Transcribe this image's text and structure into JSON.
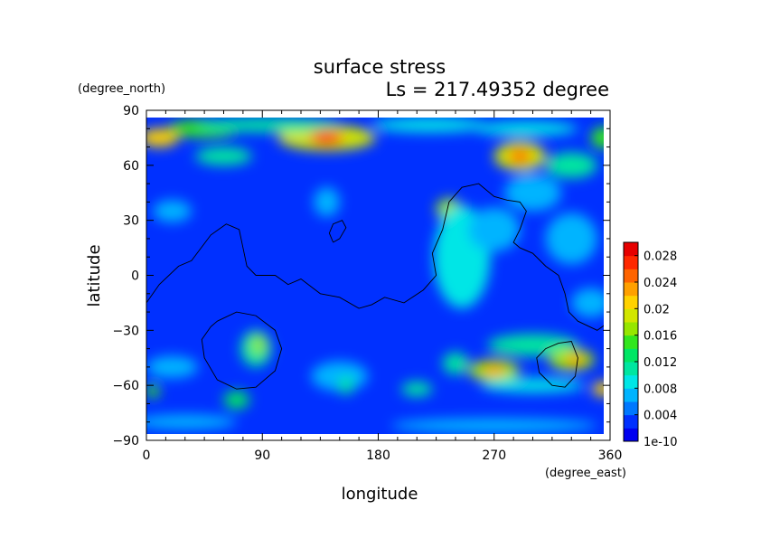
{
  "chart_data": {
    "type": "heatmap",
    "title": "surface stress",
    "subtitle": "Ls = 217.49352 degree",
    "xlabel": "longitude",
    "ylabel": "latitude",
    "x_unit": "(degree_east)",
    "y_unit": "(degree_north)",
    "xlim": [
      0,
      360
    ],
    "ylim": [
      -90,
      90
    ],
    "x_ticks": [
      0,
      90,
      180,
      270,
      360
    ],
    "y_ticks": [
      -90,
      -60,
      -30,
      0,
      30,
      60,
      90
    ],
    "x_tick_labels": [
      "0",
      "90",
      "180",
      "270",
      "360"
    ],
    "y_tick_labels": [
      "−90",
      "−60",
      "−30",
      "0",
      "30",
      "60",
      "90"
    ],
    "grid": false,
    "colorbar": {
      "range": [
        0,
        0.03
      ],
      "tick_values": [
        0,
        0.004,
        0.008,
        0.012,
        0.016,
        0.02,
        0.024,
        0.028
      ],
      "tick_labels": [
        "1e-10",
        "0.004",
        "0.008",
        "0.012",
        "0.016",
        "0.02",
        "0.024",
        "0.028"
      ],
      "colors": [
        "#0000f0",
        "#0030ff",
        "#0078ff",
        "#00b4ff",
        "#00e6e6",
        "#00e6a0",
        "#00e664",
        "#32e61e",
        "#96e600",
        "#d2e600",
        "#ffd200",
        "#ffa000",
        "#ff6400",
        "#ff2800",
        "#e60000"
      ]
    },
    "background_value": 0.0025,
    "features": [
      {
        "lon": 45,
        "lat": 80,
        "rx": 28,
        "ry": 5,
        "value": 0.014
      },
      {
        "lon": 10,
        "lat": 75,
        "rx": 15,
        "ry": 5,
        "value": 0.02
      },
      {
        "lon": 140,
        "lat": 75,
        "rx": 38,
        "ry": 7,
        "value": 0.018
      },
      {
        "lon": 140,
        "lat": 75,
        "rx": 13,
        "ry": 4,
        "value": 0.026
      },
      {
        "lon": 95,
        "lat": 82,
        "rx": 55,
        "ry": 4,
        "value": 0.011
      },
      {
        "lon": 220,
        "lat": 82,
        "rx": 45,
        "ry": 4,
        "value": 0.008
      },
      {
        "lon": 295,
        "lat": 80,
        "rx": 40,
        "ry": 4,
        "value": 0.009
      },
      {
        "lon": 60,
        "lat": 65,
        "rx": 22,
        "ry": 5,
        "value": 0.011
      },
      {
        "lon": 290,
        "lat": 65,
        "rx": 20,
        "ry": 8,
        "value": 0.019
      },
      {
        "lon": 290,
        "lat": 65,
        "rx": 9,
        "ry": 4,
        "value": 0.024
      },
      {
        "lon": 330,
        "lat": 60,
        "rx": 20,
        "ry": 7,
        "value": 0.01
      },
      {
        "lon": 355,
        "lat": 75,
        "rx": 10,
        "ry": 6,
        "value": 0.014
      },
      {
        "lon": 235,
        "lat": 36,
        "rx": 10,
        "ry": 6,
        "value": 0.016
      },
      {
        "lon": 245,
        "lat": 10,
        "rx": 22,
        "ry": 28,
        "value": 0.008
      },
      {
        "lon": 270,
        "lat": 25,
        "rx": 20,
        "ry": 12,
        "value": 0.007
      },
      {
        "lon": 330,
        "lat": 20,
        "rx": 20,
        "ry": 14,
        "value": 0.007
      },
      {
        "lon": 345,
        "lat": -15,
        "rx": 15,
        "ry": 8,
        "value": 0.007
      },
      {
        "lon": 20,
        "lat": 35,
        "rx": 15,
        "ry": 6,
        "value": 0.007
      },
      {
        "lon": 140,
        "lat": 40,
        "rx": 10,
        "ry": 8,
        "value": 0.006
      },
      {
        "lon": 300,
        "lat": 45,
        "rx": 22,
        "ry": 10,
        "value": 0.006
      },
      {
        "lon": 85,
        "lat": -40,
        "rx": 12,
        "ry": 10,
        "value": 0.011
      },
      {
        "lon": 87,
        "lat": -38,
        "rx": 5,
        "ry": 5,
        "value": 0.016
      },
      {
        "lon": 70,
        "lat": -68,
        "rx": 10,
        "ry": 5,
        "value": 0.013
      },
      {
        "lon": 150,
        "lat": -55,
        "rx": 22,
        "ry": 8,
        "value": 0.007
      },
      {
        "lon": 155,
        "lat": -60,
        "rx": 6,
        "ry": 5,
        "value": 0.01
      },
      {
        "lon": 210,
        "lat": -62,
        "rx": 12,
        "ry": 4,
        "value": 0.011
      },
      {
        "lon": 240,
        "lat": -48,
        "rx": 10,
        "ry": 6,
        "value": 0.011
      },
      {
        "lon": 270,
        "lat": -52,
        "rx": 20,
        "ry": 6,
        "value": 0.017
      },
      {
        "lon": 270,
        "lat": -52,
        "rx": 10,
        "ry": 3,
        "value": 0.022
      },
      {
        "lon": 300,
        "lat": -38,
        "rx": 35,
        "ry": 6,
        "value": 0.011
      },
      {
        "lon": 330,
        "lat": -46,
        "rx": 18,
        "ry": 6,
        "value": 0.017
      },
      {
        "lon": 333,
        "lat": -46,
        "rx": 8,
        "ry": 3,
        "value": 0.022
      },
      {
        "lon": 355,
        "lat": -62,
        "rx": 9,
        "ry": 4,
        "value": 0.02
      },
      {
        "lon": 5,
        "lat": -63,
        "rx": 5,
        "ry": 4,
        "value": 0.014
      },
      {
        "lon": 300,
        "lat": -60,
        "rx": 40,
        "ry": 4,
        "value": 0.008
      },
      {
        "lon": 20,
        "lat": -50,
        "rx": 20,
        "ry": 6,
        "value": 0.007
      },
      {
        "lon": 30,
        "lat": -80,
        "rx": 40,
        "ry": 4,
        "value": 0.006
      },
      {
        "lon": 270,
        "lat": -82,
        "rx": 80,
        "ry": 4,
        "value": 0.007
      }
    ],
    "contours": [
      {
        "points": [
          [
            0,
            -15
          ],
          [
            10,
            -5
          ],
          [
            25,
            5
          ],
          [
            35,
            8
          ],
          [
            50,
            22
          ],
          [
            62,
            28
          ],
          [
            72,
            25
          ],
          [
            75,
            15
          ],
          [
            78,
            5
          ],
          [
            85,
            0
          ],
          [
            100,
            0
          ],
          [
            110,
            -5
          ],
          [
            120,
            -2
          ],
          [
            135,
            -10
          ],
          [
            150,
            -12
          ],
          [
            165,
            -18
          ],
          [
            175,
            -16
          ],
          [
            185,
            -12
          ],
          [
            200,
            -15
          ],
          [
            215,
            -8
          ],
          [
            225,
            0
          ],
          [
            222,
            12
          ],
          [
            230,
            25
          ],
          [
            235,
            40
          ],
          [
            245,
            48
          ],
          [
            258,
            50
          ],
          [
            270,
            43
          ],
          [
            280,
            41
          ],
          [
            290,
            40
          ],
          [
            295,
            35
          ],
          [
            290,
            25
          ],
          [
            285,
            18
          ],
          [
            290,
            15
          ],
          [
            300,
            12
          ],
          [
            310,
            5
          ],
          [
            320,
            0
          ],
          [
            325,
            -10
          ],
          [
            328,
            -20
          ],
          [
            335,
            -25
          ],
          [
            350,
            -30
          ],
          [
            360,
            -25
          ]
        ]
      },
      {
        "points": [
          [
            145,
            18
          ],
          [
            150,
            20
          ],
          [
            155,
            26
          ],
          [
            152,
            30
          ],
          [
            145,
            28
          ],
          [
            142,
            23
          ],
          [
            145,
            18
          ]
        ]
      },
      {
        "points": [
          [
            55,
            -25
          ],
          [
            70,
            -20
          ],
          [
            85,
            -22
          ],
          [
            100,
            -30
          ],
          [
            105,
            -40
          ],
          [
            100,
            -52
          ],
          [
            85,
            -61
          ],
          [
            70,
            -62
          ],
          [
            55,
            -57
          ],
          [
            45,
            -45
          ],
          [
            43,
            -35
          ],
          [
            50,
            -28
          ],
          [
            55,
            -25
          ]
        ]
      },
      {
        "points": [
          [
            320,
            -37
          ],
          [
            330,
            -36
          ],
          [
            335,
            -45
          ],
          [
            333,
            -55
          ],
          [
            325,
            -61
          ],
          [
            315,
            -60
          ],
          [
            305,
            -53
          ],
          [
            303,
            -45
          ],
          [
            310,
            -40
          ],
          [
            320,
            -37
          ]
        ]
      }
    ]
  }
}
